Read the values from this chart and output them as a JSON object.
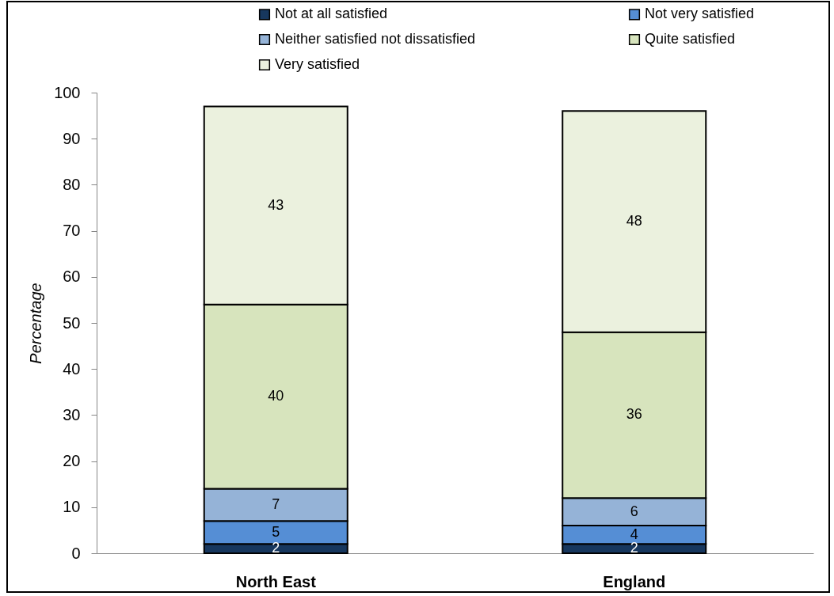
{
  "chart_data": {
    "type": "bar",
    "stacked": true,
    "ylabel": "Percentage",
    "categories": [
      "North East",
      "England"
    ],
    "series": [
      {
        "name": "Not at all satisfied",
        "color": "#17375e",
        "values": [
          2,
          2
        ]
      },
      {
        "name": "Not very satisfied",
        "color": "#558ed5",
        "values": [
          5,
          4
        ]
      },
      {
        "name": "Neither satisfied not dissatisfied",
        "color": "#95b3d7",
        "values": [
          7,
          6
        ]
      },
      {
        "name": "Quite satisfied",
        "color": "#d7e4bd",
        "values": [
          40,
          36
        ]
      },
      {
        "name": "Very satisfied",
        "color": "#ebf1de",
        "values": [
          43,
          48
        ]
      }
    ],
    "ylim": [
      0,
      100
    ],
    "yticks": [
      0,
      10,
      20,
      30,
      40,
      50,
      60,
      70,
      80,
      90,
      100
    ],
    "grid": false,
    "legend": "top",
    "data_labels": true
  }
}
